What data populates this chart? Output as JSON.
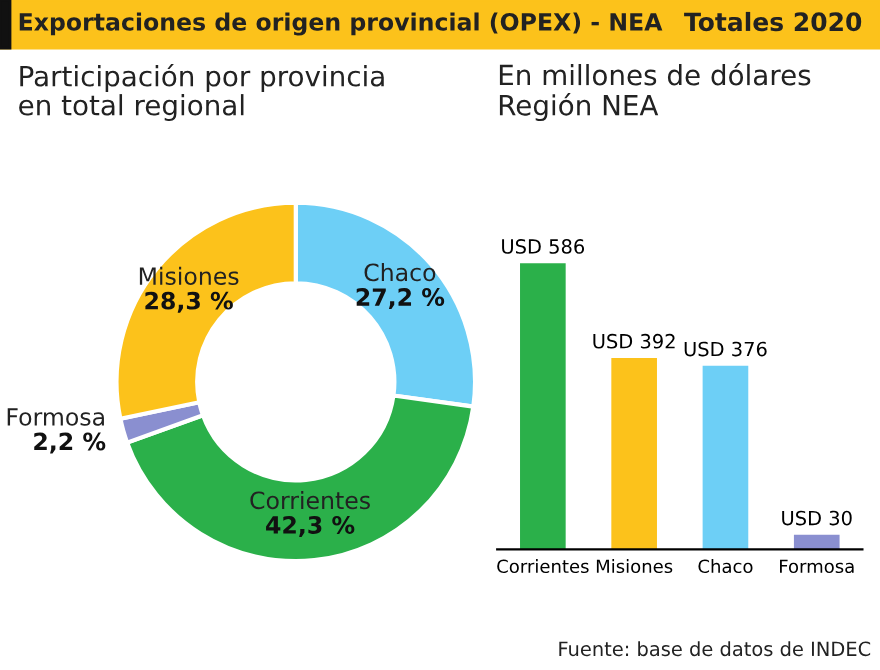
{
  "chart_data": [
    {
      "type": "donut",
      "title": "Exportaciones de origen provincial (OPEX) - NEA",
      "subtitle": "Participación por provincia\nen total regional",
      "categories": [
        "Chaco",
        "Corrientes",
        "Formosa",
        "Misiones"
      ],
      "values": [
        27.2,
        42.3,
        2.2,
        28.3
      ],
      "value_labels": [
        "27,2 %",
        "42,3 %",
        "2,2 %",
        "28,3 %"
      ],
      "colors": [
        "#6dcff6",
        "#2bb04a",
        "#8a8fd0",
        "#fcc21b"
      ],
      "legend": false
    },
    {
      "type": "bar",
      "title": "Totales 2020",
      "subtitle": "En millones de dólares\nRegión NEA",
      "categories": [
        "Corrientes",
        "Misiones",
        "Chaco",
        "Formosa"
      ],
      "values": [
        586,
        392,
        376,
        30
      ],
      "value_labels": [
        "USD 586",
        "USD 392",
        "USD 376",
        "USD 30"
      ],
      "colors": [
        "#2bb04a",
        "#fcc21b",
        "#6dcff6",
        "#8a8fd0"
      ],
      "annotations": [
        "Fuente: base de datos de INDEC"
      ]
    }
  ]
}
